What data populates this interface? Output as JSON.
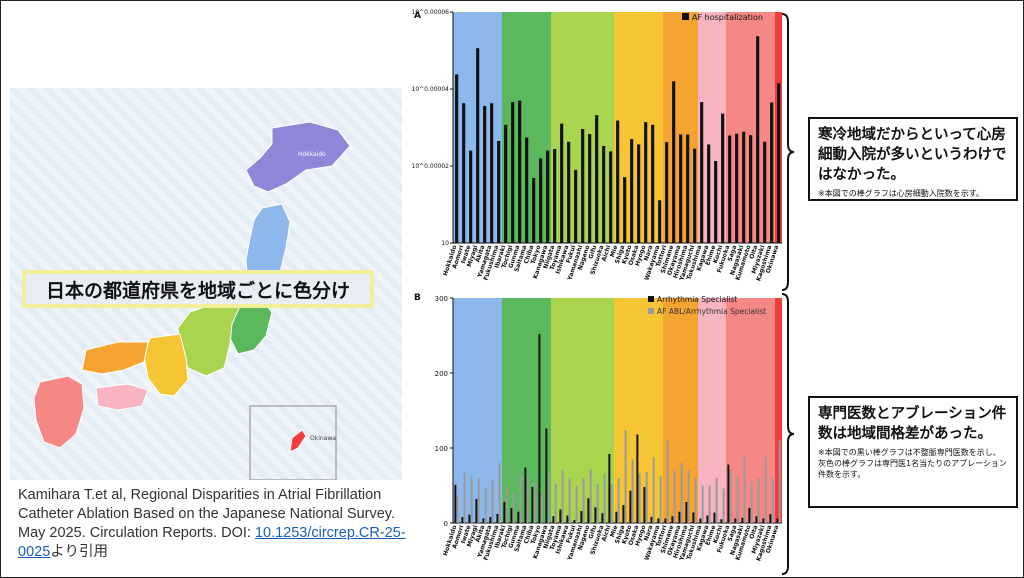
{
  "map": {
    "banner": "日本の都道府県を地域ごとに色分け",
    "labels": [
      "Hokkaido",
      "Okinawa"
    ]
  },
  "citation": {
    "text": "Kamihara T.et al, Regional Disparities in Atrial Fibrillation Catheter Ablation Based on the Japanese National Survey. May 2025. Circulation Reports. DOI: ",
    "doi": "10.1253/circrep.CR-25-0025",
    "suffix": "より引用"
  },
  "callouts": {
    "top_main": "寒冷地域だからといって心房細動入院が多いというわけではなかった。",
    "top_note": "※本図での棒グラフは心房細動入院数を示す。",
    "bottom_main": "専門医数とアブレーション件数は地域間格差があった。",
    "bottom_note": "※本図での黒い棒グラフは不整脈専門医数を示し、灰色の棒グラフは専門医1名当たりのアブレーション件数を示す。"
  },
  "colors": {
    "regions": [
      "#8cb8ec",
      "#5cb85c",
      "#a9d44f",
      "#f5c534",
      "#f6a431",
      "#f8b4c0",
      "#f58785",
      "#f23b3b"
    ],
    "bar_black": "#111111",
    "bar_grey": "#9a9a9a"
  },
  "chart_data": [
    {
      "panel": "A",
      "type": "bar",
      "scale": "log",
      "ytick_labels": [
        "10",
        "10^0.00002",
        "10^0.00004",
        "10^0.00006"
      ],
      "ylim_exp": [
        0,
        6e-05
      ],
      "legend": "AF hospitalization",
      "categories": [
        "Hokkaido",
        "Aomori",
        "Iwate",
        "Miyagi",
        "Akita",
        "Yamagata",
        "Fukushima",
        "Ibaraki",
        "Tochigi",
        "Gunma",
        "Saitama",
        "Chiba",
        "Tokyo",
        "Kanagawa",
        "Niigata",
        "Toyama",
        "Ishikawa",
        "Fukui",
        "Yamanashi",
        "Nagano",
        "Gifu",
        "Shizuoka",
        "Aichi",
        "Mie",
        "Shiga",
        "Kyoto",
        "Osaka",
        "Hyogo",
        "Nara",
        "Wakayama",
        "Tottori",
        "Shimane",
        "Okayama",
        "Hiroshima",
        "Yamaguchi",
        "Tokushima",
        "Kagawa",
        "Ehime",
        "Kochi",
        "Fukuoka",
        "Saga",
        "Nagasaki",
        "Kumamoto",
        "Oita",
        "Miyazaki",
        "Kagoshima",
        "Okinawa"
      ],
      "regions": [
        0,
        0,
        0,
        0,
        0,
        0,
        0,
        1,
        1,
        1,
        1,
        1,
        1,
        1,
        2,
        2,
        2,
        2,
        2,
        2,
        2,
        2,
        2,
        3,
        3,
        3,
        3,
        3,
        3,
        3,
        4,
        4,
        4,
        4,
        4,
        5,
        5,
        5,
        5,
        6,
        6,
        6,
        6,
        6,
        6,
        6,
        7
      ],
      "values": [
        4.38e-05,
        3.63e-05,
        2.4e-05,
        5.06e-05,
        3.56e-05,
        3.63e-05,
        2.65e-05,
        3.07e-05,
        3.66e-05,
        3.7e-05,
        2.74e-05,
        1.69e-05,
        2.2e-05,
        2.4e-05,
        2.44e-05,
        3.1e-05,
        2.63e-05,
        1.9e-05,
        2.96e-05,
        2.83e-05,
        3.32e-05,
        2.52e-05,
        2.38e-05,
        3.18e-05,
        1.71e-05,
        2.7e-05,
        2.56e-05,
        3.14e-05,
        3.07e-05,
        1.11e-05,
        2.62e-05,
        4.2e-05,
        2.82e-05,
        2.82e-05,
        2.45e-05,
        3.66e-05,
        2.56e-05,
        2.13e-05,
        3.36e-05,
        2.79e-05,
        2.84e-05,
        2.89e-05,
        2.8e-05,
        5.37e-05,
        2.63e-05,
        3.65e-05,
        4.15e-05
      ]
    },
    {
      "panel": "B",
      "type": "bar",
      "ylim": [
        0,
        300
      ],
      "yticks": [
        0,
        100,
        200,
        300
      ],
      "legend": [
        "Arrhythmia Specialist",
        "AF ABL/Arrhythmia Specialist"
      ],
      "categories": [
        "Hokkaido",
        "Aomori",
        "Iwate",
        "Miyagi",
        "Akita",
        "Yamagata",
        "Fukushima",
        "Ibaraki",
        "Tochigi",
        "Gunma",
        "Saitama",
        "Chiba",
        "Tokyo",
        "Kanagawa",
        "Niigata",
        "Toyama",
        "Ishikawa",
        "Fukui",
        "Yamanashi",
        "Nagano",
        "Gifu",
        "Shizuoka",
        "Aichi",
        "Mie",
        "Shiga",
        "Kyoto",
        "Osaka",
        "Hyogo",
        "Nara",
        "Wakayama",
        "Tottori",
        "Shimane",
        "Okayama",
        "Hiroshima",
        "Yamaguchi",
        "Tokushima",
        "Kagawa",
        "Ehime",
        "Kochi",
        "Fukuoka",
        "Saga",
        "Nagasaki",
        "Kumamoto",
        "Oita",
        "Miyazaki",
        "Kagoshima",
        "Okinawa"
      ],
      "regions": [
        0,
        0,
        0,
        0,
        0,
        0,
        0,
        1,
        1,
        1,
        1,
        1,
        1,
        1,
        2,
        2,
        2,
        2,
        2,
        2,
        2,
        2,
        2,
        3,
        3,
        3,
        3,
        3,
        3,
        3,
        4,
        4,
        4,
        4,
        4,
        5,
        5,
        5,
        5,
        6,
        6,
        6,
        6,
        6,
        6,
        6,
        7
      ],
      "series": [
        {
          "name": "Arrhythmia Specialist",
          "values": [
            51,
            8,
            11,
            32,
            6,
            8,
            12,
            28,
            20,
            15,
            74,
            48,
            252,
            126,
            9,
            18,
            10,
            4,
            16,
            33,
            21,
            13,
            92,
            15,
            24,
            43,
            118,
            48,
            8,
            6,
            6,
            9,
            15,
            28,
            14,
            6,
            10,
            14,
            5,
            78,
            6,
            7,
            20,
            9,
            6,
            12,
            6
          ]
        },
        {
          "name": "AF ABL/Arrhythmia Specialist",
          "values": [
            36,
            68,
            62,
            60,
            46,
            57,
            80,
            50,
            40,
            65,
            60,
            53,
            40,
            68,
            52,
            70,
            60,
            50,
            60,
            72,
            52,
            66,
            52,
            60,
            124,
            85,
            66,
            68,
            88,
            62,
            110,
            70,
            80,
            70,
            60,
            50,
            50,
            60,
            46,
            70,
            62,
            90,
            55,
            60,
            88,
            60,
            110
          ]
        }
      ]
    }
  ]
}
